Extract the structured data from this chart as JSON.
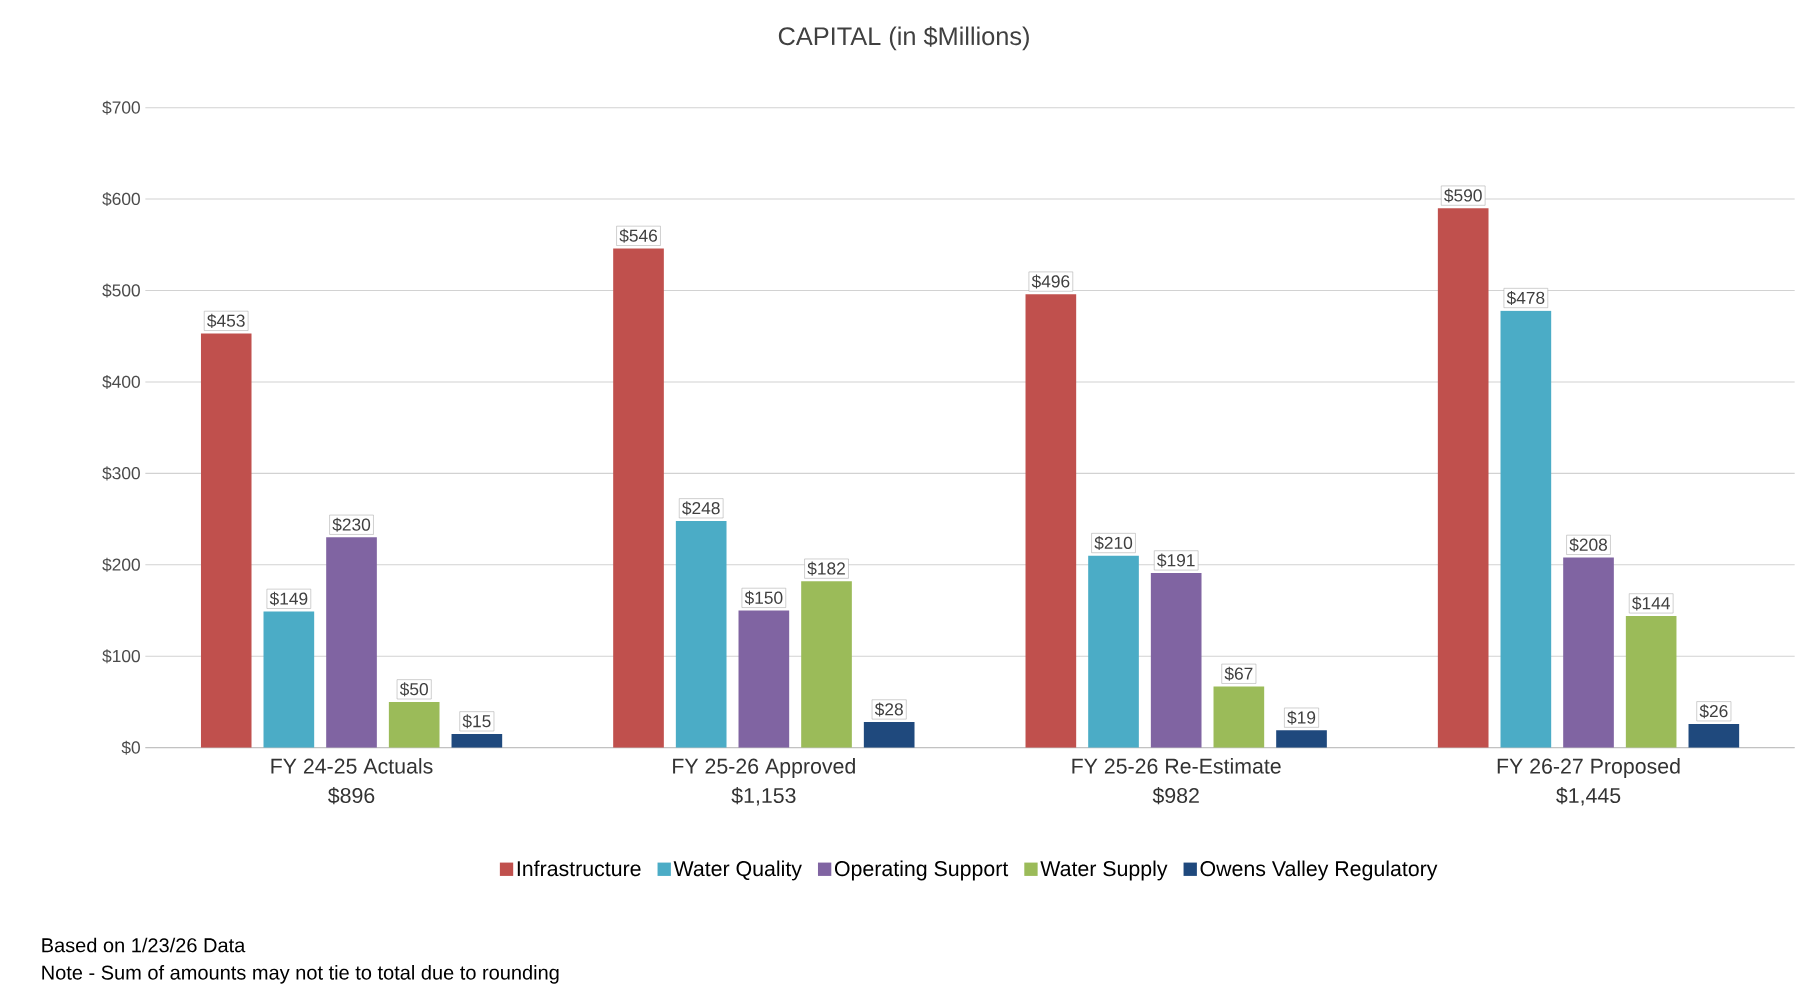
{
  "chart_data": {
    "type": "bar",
    "title": "CAPITAL (in $Millions)",
    "categories": [
      "FY 24-25 Actuals",
      "FY 25-26 Approved",
      "FY 25-26 Re-Estimate",
      "FY 26-27 Proposed"
    ],
    "totals": [
      "$896",
      "$1,153",
      "$982",
      "$1,445"
    ],
    "series": [
      {
        "name": "Infrastructure",
        "color": "#c0504d",
        "values": [
          453,
          546,
          496,
          590
        ],
        "value_labels": [
          "$453",
          "$546",
          "$496",
          "$590"
        ]
      },
      {
        "name": "Water Quality",
        "color": "#4bacc6",
        "values": [
          149,
          248,
          210,
          478
        ],
        "value_labels": [
          "$149",
          "$248",
          "$210",
          "$478"
        ]
      },
      {
        "name": "Operating Support",
        "color": "#8064a2",
        "values": [
          230,
          150,
          191,
          208
        ],
        "value_labels": [
          "$230",
          "$150",
          "$191",
          "$208"
        ]
      },
      {
        "name": "Water Supply",
        "color": "#9bbb59",
        "values": [
          50,
          182,
          67,
          144
        ],
        "value_labels": [
          "$50",
          "$182",
          "$67",
          "$144"
        ]
      },
      {
        "name": "Owens Valley Regulatory",
        "color": "#1f497d",
        "values": [
          15,
          28,
          19,
          26
        ],
        "value_labels": [
          "$15",
          "$28",
          "$19",
          "$26"
        ]
      }
    ],
    "ylim": [
      0,
      700
    ],
    "yticks": [
      {
        "value": 0,
        "label": "$0"
      },
      {
        "value": 100,
        "label": "$100"
      },
      {
        "value": 200,
        "label": "$200"
      },
      {
        "value": 300,
        "label": "$300"
      },
      {
        "value": 400,
        "label": "$400"
      },
      {
        "value": 500,
        "label": "$500"
      },
      {
        "value": 600,
        "label": "$600"
      },
      {
        "value": 700,
        "label": "$700"
      }
    ],
    "grid": "y",
    "legend": "bottom",
    "annotations": [
      "Based on 1/23/26 Data",
      "Note - Sum of amounts may not tie to total due to rounding"
    ]
  }
}
